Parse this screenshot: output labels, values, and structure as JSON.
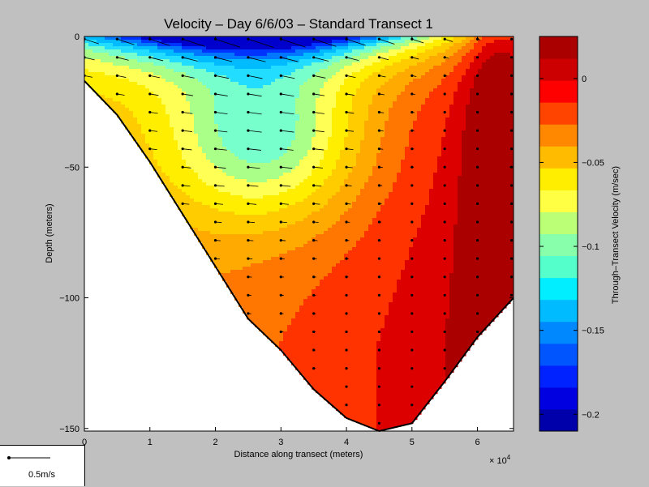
{
  "chart_data": {
    "type": "heatmap",
    "title": "Velocity – Day 6/6/03 – Standard Transect 1",
    "xlabel": "Distance along transect (meters)",
    "ylabel": "Depth (meters)",
    "x_multiplier_label": "× 10",
    "x_multiplier_exp": "4",
    "xlim": [
      0,
      6.55
    ],
    "ylim": [
      -151,
      0
    ],
    "x_ticks": [
      "0",
      "1",
      "2",
      "3",
      "4",
      "5",
      "6"
    ],
    "x_tick_values": [
      0,
      1,
      2,
      3,
      4,
      5,
      6
    ],
    "y_ticks": [
      "0",
      "−50",
      "−100",
      "−150"
    ],
    "y_tick_values": [
      0,
      -50,
      -100,
      -150
    ],
    "bottom_profile": {
      "x": [
        0,
        0.5,
        1,
        1.5,
        2,
        2.5,
        3,
        3.5,
        4,
        4.5,
        5,
        5.5,
        6,
        6.55
      ],
      "depth": [
        -17,
        -30,
        -48,
        -68,
        -88,
        -108,
        -120,
        -135,
        -146,
        -151,
        -148,
        -132,
        -115,
        -100
      ]
    },
    "colorbar": {
      "label": "Through–Transect Velocity (m/sec)",
      "ticks": [
        "0",
        "−0.05",
        "−0.1",
        "−0.15",
        "−0.2"
      ],
      "tick_values": [
        0,
        -0.05,
        -0.1,
        -0.15,
        -0.2
      ],
      "range": [
        -0.21,
        0.025
      ],
      "colors": [
        "#0000aa",
        "#0000e0",
        "#0022ff",
        "#0055ff",
        "#0088ff",
        "#00bbff",
        "#00eeff",
        "#55ffcc",
        "#88ffaa",
        "#bbff77",
        "#ffff44",
        "#ffee00",
        "#ffbb00",
        "#ff8800",
        "#ff4400",
        "#ff0000",
        "#cc0000",
        "#aa0000"
      ]
    },
    "contour_colors": [
      "#0000cc",
      "#0033ff",
      "#0077ff",
      "#00bbff",
      "#22ddff",
      "#77ffcc",
      "#aaff88",
      "#ffff55",
      "#ffee00",
      "#ffcc00",
      "#ffaa00",
      "#ff7700",
      "#ff3300",
      "#dd0000",
      "#aa0000"
    ],
    "vector_legend": "0.5m/s"
  }
}
